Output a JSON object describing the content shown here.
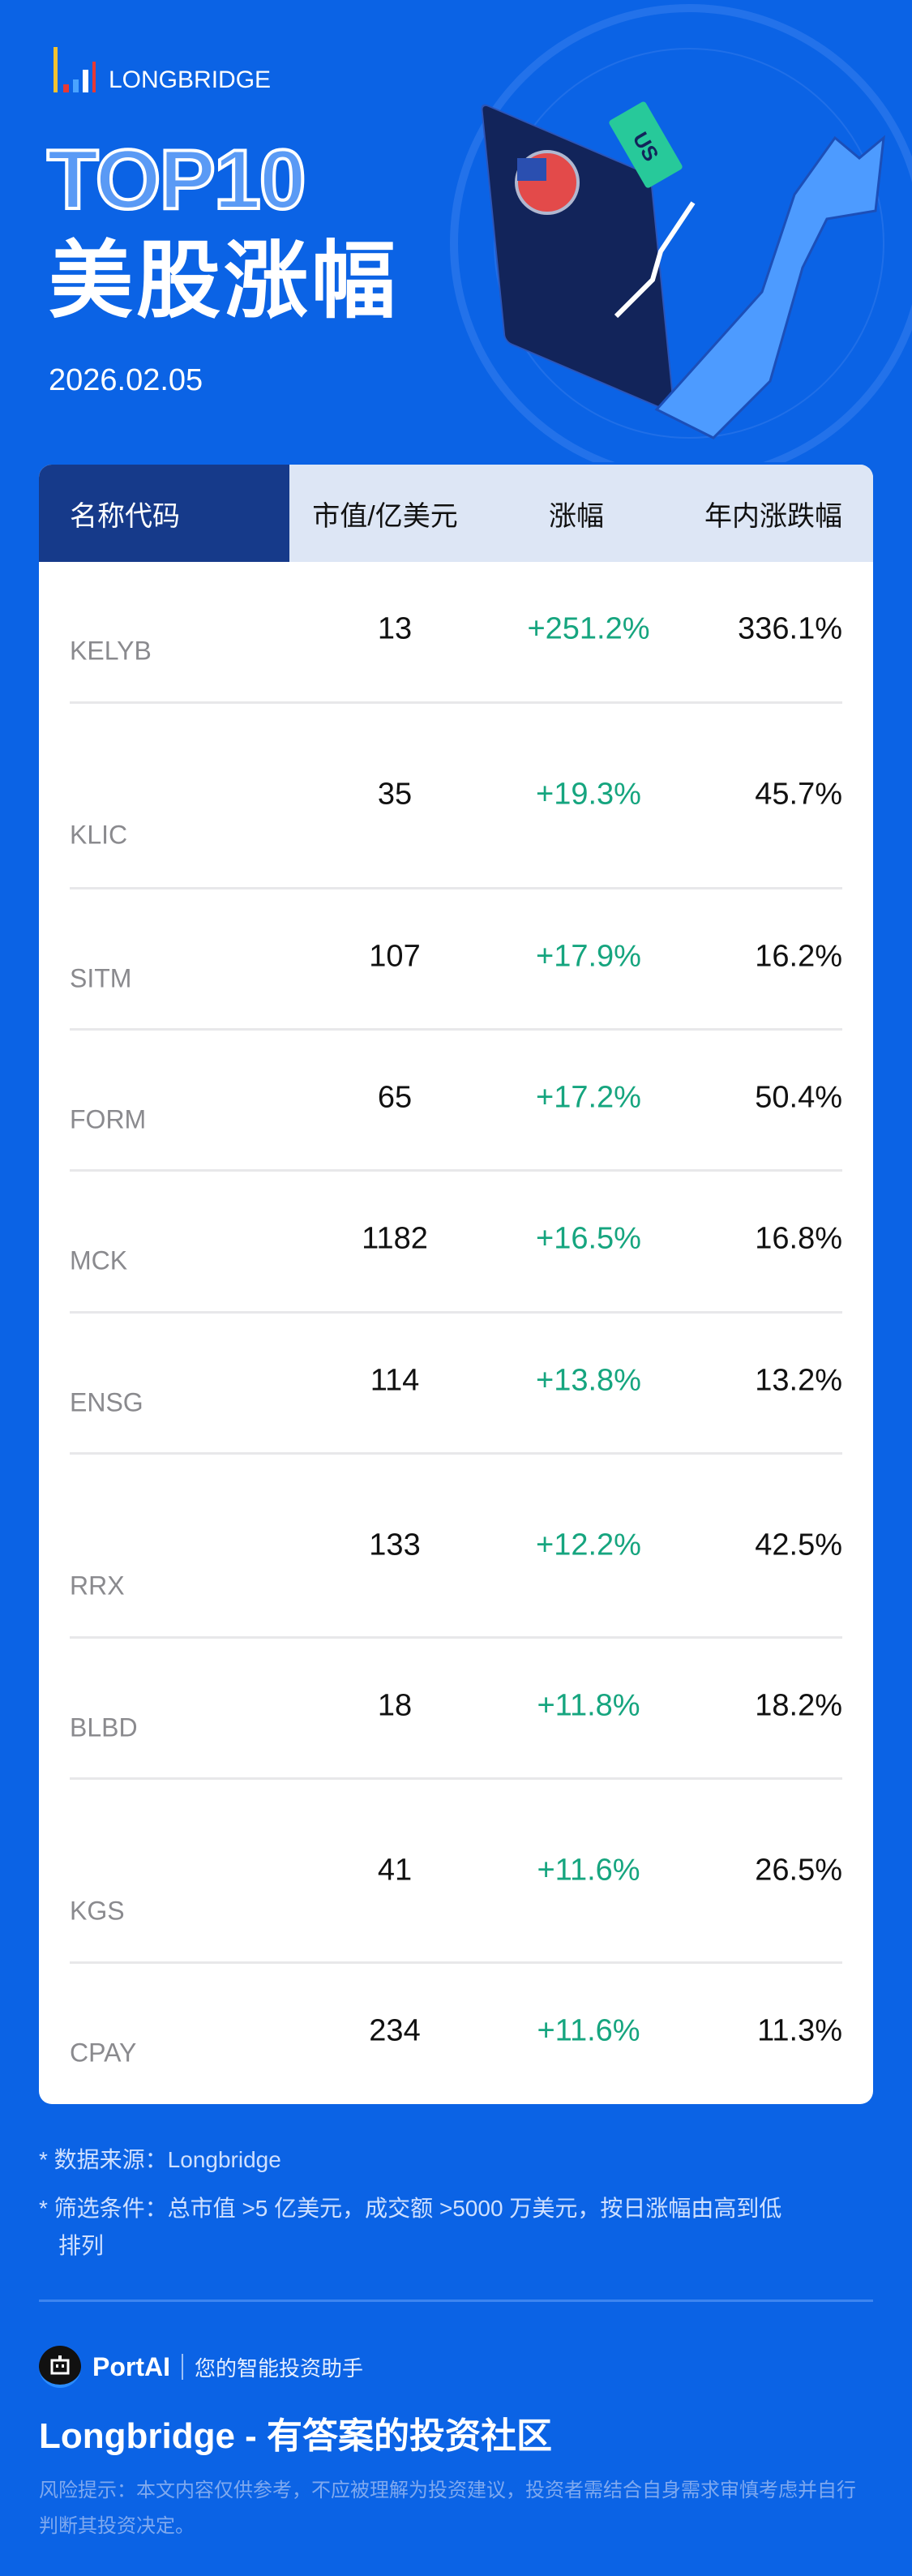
{
  "brand": {
    "logo_text": "LONGBRIDGE"
  },
  "hero": {
    "top10": "TOP10",
    "title": "美股涨幅",
    "date": "2026.02.05",
    "tag": "US"
  },
  "table": {
    "headers": [
      "名称代码",
      "市值/亿美元",
      "涨幅",
      "年内涨跌幅"
    ],
    "rows": [
      {
        "ticker": "KELYB",
        "market_cap": "13",
        "change": "+251.2%",
        "ytd": "336.1%"
      },
      {
        "ticker": "KLIC",
        "market_cap": "35",
        "change": "+19.3%",
        "ytd": "45.7%"
      },
      {
        "ticker": "SITM",
        "market_cap": "107",
        "change": "+17.9%",
        "ytd": "16.2%"
      },
      {
        "ticker": "FORM",
        "market_cap": "65",
        "change": "+17.2%",
        "ytd": "50.4%"
      },
      {
        "ticker": "MCK",
        "market_cap": "1182",
        "change": "+16.5%",
        "ytd": "16.8%"
      },
      {
        "ticker": "ENSG",
        "market_cap": "114",
        "change": "+13.8%",
        "ytd": "13.2%"
      },
      {
        "ticker": "RRX",
        "market_cap": "133",
        "change": "+12.2%",
        "ytd": "42.5%"
      },
      {
        "ticker": "BLBD",
        "market_cap": "18",
        "change": "+11.8%",
        "ytd": "18.2%"
      },
      {
        "ticker": "KGS",
        "market_cap": "41",
        "change": "+11.6%",
        "ytd": "26.5%"
      },
      {
        "ticker": "CPAY",
        "market_cap": "234",
        "change": "+11.6%",
        "ytd": "11.3%"
      }
    ]
  },
  "notes": {
    "source": "* 数据来源：Longbridge",
    "filter": "* 筛选条件：总市值 >5 亿美元，成交额 >5000 万美元，按日涨幅由高到低",
    "filter_cont": "排列"
  },
  "footer": {
    "portai_name": "PortAI",
    "portai_tag": "您的智能投资助手",
    "slogan": "Longbridge - 有答案的投资社区",
    "disclaimer": "风险提示：本文内容仅供参考，不应被理解为投资建议，投资者需结合自身需求审慎考虑并自行判断其投资决定。"
  },
  "colors": {
    "background": "#0b63e5",
    "header_dark": "#163a8a",
    "header_light": "#dde6f5",
    "positive": "#16a57f"
  }
}
